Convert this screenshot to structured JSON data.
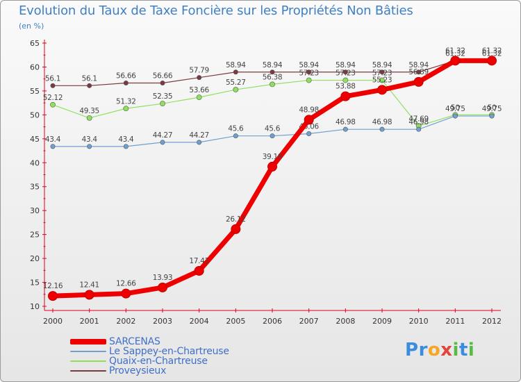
{
  "header": {
    "title": "Evolution du Taux de Taxe Foncière sur les Propriétés Non Bâties",
    "unit": "(en %)"
  },
  "logo": {
    "letters": [
      "P",
      "r",
      "o",
      "x",
      "i",
      "t",
      "i"
    ],
    "colors": [
      "#3a8dde",
      "#3a8dde",
      "#f5a623",
      "#e2433b",
      "#58b947",
      "#3a8dde",
      "#58b947"
    ]
  },
  "chart_data": {
    "type": "line",
    "title": "Evolution du Taux de Taxe Foncière sur les Propriétés Non Bâties",
    "ylabel": "(en %)",
    "xlabel": "",
    "ylim": [
      10,
      65
    ],
    "yticks": [
      10,
      15,
      20,
      25,
      30,
      35,
      40,
      45,
      50,
      55,
      60,
      65
    ],
    "grid": false,
    "x": [
      "2000",
      "2001",
      "2002",
      "2003",
      "2004",
      "2005",
      "2006",
      "2007",
      "2008",
      "2009",
      "2010",
      "2011",
      "2012"
    ],
    "series": [
      {
        "name": "Proveysieux",
        "color": "#7a3a40",
        "values": [
          56.1,
          56.1,
          56.66,
          56.66,
          57.79,
          58.94,
          58.94,
          58.94,
          58.94,
          58.94,
          58.94,
          61.32,
          61.32
        ],
        "labels": [
          "56.1",
          "56.1",
          "56.66",
          "56.66",
          "57.79",
          "58.94",
          "58.94",
          "58.94",
          "58.94",
          "58.94",
          "58.94",
          "61.32",
          "61.32"
        ]
      },
      {
        "name": "Quaix-en-Chartreuse",
        "color": "#90e060",
        "values": [
          52.12,
          49.35,
          51.32,
          52.35,
          53.66,
          55.27,
          56.38,
          57.23,
          57.23,
          57.23,
          47.69,
          50,
          50
        ],
        "labels": [
          "52.12",
          "49.35",
          "51.32",
          "52.35",
          "53.66",
          "55.27",
          "56.38",
          "57.23",
          "57.23",
          "57.23",
          "47.69",
          "50",
          "50"
        ]
      },
      {
        "name": "Le Sappey-en-Chartreuse",
        "color": "#6fa0cf",
        "values": [
          43.4,
          43.4,
          43.4,
          44.27,
          44.27,
          45.6,
          45.6,
          46.06,
          46.98,
          46.98,
          46.98,
          49.75,
          49.75
        ],
        "labels": [
          "43.4",
          "43.4",
          "43.4",
          "44.27",
          "44.27",
          "45.6",
          "45.6",
          "46.06",
          "46.98",
          "46.98",
          "46.98",
          "49.75",
          "49.75"
        ]
      },
      {
        "name": "SARCENAS",
        "color": "#ee0000",
        "values": [
          12.16,
          12.41,
          12.66,
          13.93,
          17.41,
          26.12,
          39.18,
          48.98,
          53.88,
          55.23,
          56.89,
          61.32,
          61.32
        ],
        "labels": [
          "12.16",
          "12.41",
          "12.66",
          "13.93",
          "17.41",
          "26.12",
          "39.18",
          "48.98",
          "53.88",
          "55.23",
          "56.89",
          "61.32",
          "61.32"
        ]
      }
    ],
    "legend": [
      "SARCENAS",
      "Le Sappey-en-Chartreuse",
      "Quaix-en-Chartreuse",
      "Proveysieux"
    ]
  }
}
